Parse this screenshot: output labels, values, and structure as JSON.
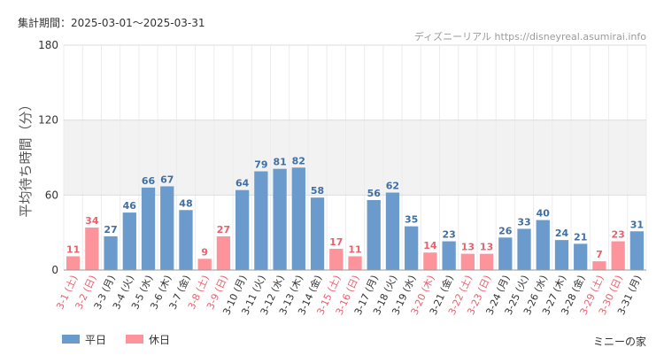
{
  "header": {
    "period": "集計期間：2025-03-01～2025-03-31",
    "credit": "ディズニーリアル https://disneyreal.asumirai.info"
  },
  "footer": {
    "attraction": "ミニーの家"
  },
  "colors": {
    "weekday": "#6b9bcd",
    "holiday": "#fd949b",
    "weekday_text": "#3f6fa3",
    "holiday_text": "#e8616f",
    "band": "#f2f2f2"
  },
  "chart_data": {
    "type": "bar",
    "ylabel": "平均待ち時間（分）",
    "ylim": [
      0,
      180
    ],
    "yticks": [
      0,
      60,
      120,
      180
    ],
    "shaded_band": [
      60,
      120
    ],
    "grid": true,
    "legend_position": "bottom-left",
    "legend": [
      {
        "name": "平日",
        "key": "weekday"
      },
      {
        "name": "休日",
        "key": "holiday"
      }
    ],
    "categories": [
      "3-1 (土)",
      "3-2 (日)",
      "3-3 (月)",
      "3-4 (火)",
      "3-5 (水)",
      "3-6 (木)",
      "3-7 (金)",
      "3-8 (土)",
      "3-9 (日)",
      "3-10 (月)",
      "3-11 (火)",
      "3-12 (水)",
      "3-13 (木)",
      "3-14 (金)",
      "3-15 (土)",
      "3-16 (日)",
      "3-17 (月)",
      "3-18 (火)",
      "3-19 (水)",
      "3-20 (木)",
      "3-21 (金)",
      "3-22 (土)",
      "3-23 (日)",
      "3-24 (月)",
      "3-25 (火)",
      "3-26 (水)",
      "3-27 (木)",
      "3-28 (金)",
      "3-29 (土)",
      "3-30 (日)",
      "3-31 (月)"
    ],
    "values": [
      11,
      34,
      27,
      46,
      66,
      67,
      48,
      9,
      27,
      64,
      79,
      81,
      82,
      58,
      17,
      11,
      56,
      62,
      35,
      14,
      23,
      13,
      13,
      26,
      33,
      40,
      24,
      21,
      7,
      23,
      31
    ],
    "day_type": [
      "holiday",
      "holiday",
      "weekday",
      "weekday",
      "weekday",
      "weekday",
      "weekday",
      "holiday",
      "holiday",
      "weekday",
      "weekday",
      "weekday",
      "weekday",
      "weekday",
      "holiday",
      "holiday",
      "weekday",
      "weekday",
      "weekday",
      "holiday",
      "weekday",
      "holiday",
      "holiday",
      "weekday",
      "weekday",
      "weekday",
      "weekday",
      "weekday",
      "holiday",
      "holiday",
      "weekday"
    ]
  }
}
